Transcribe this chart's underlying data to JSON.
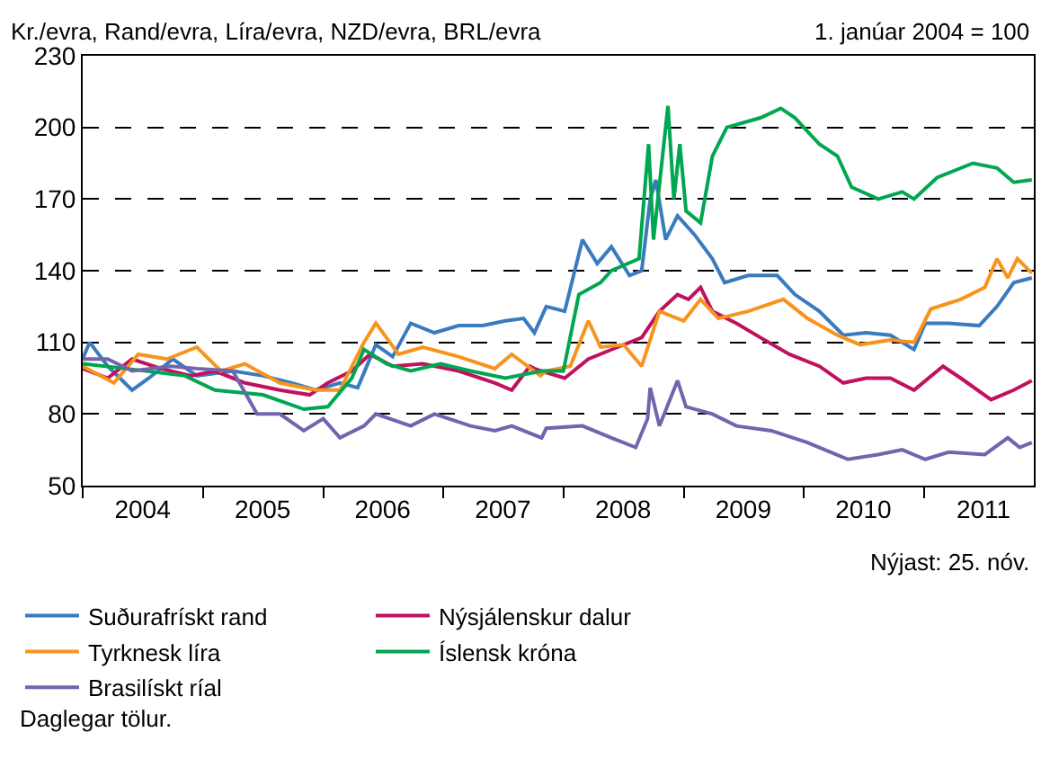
{
  "chart_data": {
    "type": "line",
    "ylabel": "Kr./evra, Rand/evra, Líra/evra, NZD/evra, BRL/evra",
    "annotations": [
      "1. janúar 2004 = 100",
      "Nýjast: 25. nóv.",
      "Daglegar tölur."
    ],
    "xlim": [
      "2004-01-01",
      "2011-12-01"
    ],
    "xticks": [
      {
        "value": "2004-01-01",
        "label": null
      },
      {
        "value": "2004-07-01",
        "label": "2004"
      },
      {
        "value": "2005-01-01",
        "label": null
      },
      {
        "value": "2005-07-01",
        "label": "2005"
      },
      {
        "value": "2006-01-01",
        "label": null
      },
      {
        "value": "2006-07-01",
        "label": "2006"
      },
      {
        "value": "2007-01-01",
        "label": null
      },
      {
        "value": "2007-07-01",
        "label": "2007"
      },
      {
        "value": "2008-01-01",
        "label": null
      },
      {
        "value": "2008-07-01",
        "label": "2008"
      },
      {
        "value": "2009-01-01",
        "label": null
      },
      {
        "value": "2009-07-01",
        "label": "2009"
      },
      {
        "value": "2010-01-01",
        "label": null
      },
      {
        "value": "2010-07-01",
        "label": "2010"
      },
      {
        "value": "2011-01-01",
        "label": null
      },
      {
        "value": "2011-07-01",
        "label": "2011"
      }
    ],
    "ylim": [
      50,
      230
    ],
    "yticks": [
      50,
      80,
      110,
      140,
      170,
      200,
      230
    ],
    "grid": "y",
    "legend": "bottom",
    "series": [
      {
        "name": "Suðurafrískt rand",
        "color": "#3a7bbf",
        "x": [
          "2004-01-01",
          "2004-01-22",
          "2004-03-17",
          "2004-05-30",
          "2004-07-20",
          "2004-10-01",
          "2004-12-13",
          "2005-04-01",
          "2005-07-02",
          "2005-09-28",
          "2005-12-09",
          "2006-02-21",
          "2006-04-16",
          "2006-06-10",
          "2006-07-31",
          "2006-09-24",
          "2006-12-05",
          "2007-02-17",
          "2007-05-01",
          "2007-07-09",
          "2007-09-02",
          "2007-10-05",
          "2007-11-10",
          "2008-01-05",
          "2008-02-28",
          "2008-04-13",
          "2008-05-26",
          "2008-07-20",
          "2008-08-26",
          "2008-09-21",
          "2008-10-08",
          "2008-11-07",
          "2008-12-13",
          "2009-02-03",
          "2009-03-29",
          "2009-05-05",
          "2009-07-16",
          "2009-10-12",
          "2009-12-05",
          "2010-02-17",
          "2010-05-01",
          "2010-07-09",
          "2010-09-21",
          "2010-12-02",
          "2011-01-05",
          "2011-03-17",
          "2011-06-18",
          "2011-08-11",
          "2011-10-01",
          "2011-11-25"
        ],
        "values": [
          103,
          110,
          100,
          90,
          95,
          103,
          96,
          98,
          96,
          93,
          90,
          93,
          91,
          109,
          104,
          118,
          114,
          117,
          117,
          119,
          120,
          114,
          125,
          123,
          153,
          143,
          150,
          138,
          140,
          170,
          178,
          153,
          163,
          155,
          145,
          135,
          138,
          138,
          130,
          123,
          113,
          114,
          113,
          107,
          118,
          118,
          117,
          125,
          135,
          137
        ]
      },
      {
        "name": "Nýsjálenskur dalur",
        "color": "#c0115f",
        "x": [
          "2004-01-01",
          "2004-03-17",
          "2004-05-30",
          "2004-08-26",
          "2004-11-25",
          "2005-02-06",
          "2005-05-08",
          "2005-08-22",
          "2005-11-21",
          "2006-01-15",
          "2006-03-29",
          "2006-05-23",
          "2006-07-31",
          "2006-10-31",
          "2007-02-17",
          "2007-06-07",
          "2007-07-28",
          "2007-09-21",
          "2007-10-05",
          "2007-10-27",
          "2008-01-05",
          "2008-03-17",
          "2008-06-14",
          "2008-08-26",
          "2008-10-19",
          "2008-12-13",
          "2009-01-15",
          "2009-02-21",
          "2009-03-29",
          "2009-06-10",
          "2009-08-22",
          "2009-11-18",
          "2010-02-17",
          "2010-05-01",
          "2010-07-09",
          "2010-09-21",
          "2010-12-02",
          "2011-02-28",
          "2011-04-23",
          "2011-07-24",
          "2011-10-01",
          "2011-11-25"
        ],
        "values": [
          99,
          95,
          103,
          99,
          96,
          98,
          93,
          90,
          88,
          93,
          98,
          105,
          100,
          101,
          98,
          93,
          90,
          100,
          99,
          98,
          95,
          103,
          108,
          112,
          123,
          130,
          128,
          133,
          123,
          118,
          112,
          105,
          100,
          93,
          95,
          95,
          90,
          100,
          95,
          86,
          90,
          94
        ]
      },
      {
        "name": "Tyrknesk líra",
        "color": "#f7941d",
        "x": [
          "2004-01-01",
          "2004-04-05",
          "2004-06-18",
          "2004-09-13",
          "2004-12-13",
          "2005-02-24",
          "2005-05-08",
          "2005-08-22",
          "2005-12-09",
          "2006-02-21",
          "2006-05-05",
          "2006-06-10",
          "2006-08-18",
          "2006-10-31",
          "2007-02-17",
          "2007-06-07",
          "2007-07-28",
          "2007-10-23",
          "2007-11-10",
          "2008-01-22",
          "2008-03-17",
          "2008-04-23",
          "2008-07-02",
          "2008-08-26",
          "2008-10-19",
          "2009-01-01",
          "2009-02-21",
          "2009-04-16",
          "2009-07-16",
          "2009-10-31",
          "2010-01-12",
          "2010-04-13",
          "2010-06-21",
          "2010-09-21",
          "2010-12-02",
          "2011-01-22",
          "2011-04-23",
          "2011-07-05",
          "2011-08-11",
          "2011-09-13",
          "2011-10-12",
          "2011-11-25"
        ],
        "values": [
          100,
          93,
          105,
          103,
          108,
          98,
          101,
          93,
          90,
          90,
          110,
          118,
          105,
          108,
          104,
          99,
          105,
          96,
          98,
          100,
          119,
          108,
          109,
          100,
          123,
          119,
          128,
          120,
          123,
          128,
          120,
          113,
          109,
          111,
          110,
          124,
          128,
          133,
          145,
          137,
          145,
          139
        ]
      },
      {
        "name": "Íslensk króna",
        "color": "#00a651",
        "x": [
          "2004-01-01",
          "2004-05-12",
          "2004-11-07",
          "2005-02-06",
          "2005-07-02",
          "2005-11-03",
          "2006-01-15",
          "2006-03-29",
          "2006-05-05",
          "2006-07-13",
          "2006-09-24",
          "2006-12-24",
          "2007-03-25",
          "2007-07-09",
          "2007-10-27",
          "2008-01-01",
          "2008-02-17",
          "2008-04-23",
          "2008-05-26",
          "2008-08-18",
          "2008-09-16",
          "2008-10-01",
          "2008-11-14",
          "2008-12-02",
          "2008-12-20",
          "2009-01-08",
          "2009-02-21",
          "2009-03-29",
          "2009-05-12",
          "2009-08-22",
          "2009-10-23",
          "2009-12-05",
          "2010-02-17",
          "2010-04-13",
          "2010-05-26",
          "2010-08-15",
          "2010-10-27",
          "2010-12-02",
          "2011-02-10",
          "2011-05-30",
          "2011-08-11",
          "2011-10-01",
          "2011-11-25"
        ],
        "values": [
          101,
          99,
          96,
          90,
          88,
          82,
          83,
          95,
          107,
          101,
          98,
          101,
          98,
          95,
          98,
          98,
          130,
          135,
          140,
          145,
          193,
          153,
          209,
          170,
          193,
          165,
          160,
          188,
          200,
          204,
          208,
          204,
          193,
          188,
          175,
          170,
          173,
          170,
          179,
          185,
          183,
          177,
          178
        ]
      },
      {
        "name": "Brasilískt ríal",
        "color": "#7264ad",
        "x": [
          "2004-01-01",
          "2004-03-17",
          "2004-05-30",
          "2004-09-24",
          "2004-12-13",
          "2005-04-01",
          "2005-06-14",
          "2005-08-22",
          "2005-11-03",
          "2006-01-01",
          "2006-02-21",
          "2006-05-05",
          "2006-06-10",
          "2006-09-24",
          "2006-12-05",
          "2007-03-25",
          "2007-06-07",
          "2007-07-28",
          "2007-10-27",
          "2007-11-10",
          "2008-02-28",
          "2008-05-26",
          "2008-08-08",
          "2008-09-13",
          "2008-09-21",
          "2008-10-19",
          "2008-12-13",
          "2009-01-08",
          "2009-03-29",
          "2009-06-10",
          "2009-09-24",
          "2010-01-12",
          "2010-05-15",
          "2010-08-15",
          "2010-10-27",
          "2011-01-05",
          "2011-03-17",
          "2011-07-05",
          "2011-09-13",
          "2011-10-19",
          "2011-11-25"
        ],
        "values": [
          103,
          103,
          98,
          100,
          99,
          98,
          80,
          80,
          73,
          78,
          70,
          75,
          80,
          75,
          80,
          75,
          73,
          75,
          70,
          74,
          75,
          70,
          66,
          78,
          91,
          75,
          94,
          83,
          80,
          75,
          73,
          68,
          61,
          63,
          65,
          61,
          64,
          63,
          70,
          66,
          68
        ]
      }
    ]
  }
}
